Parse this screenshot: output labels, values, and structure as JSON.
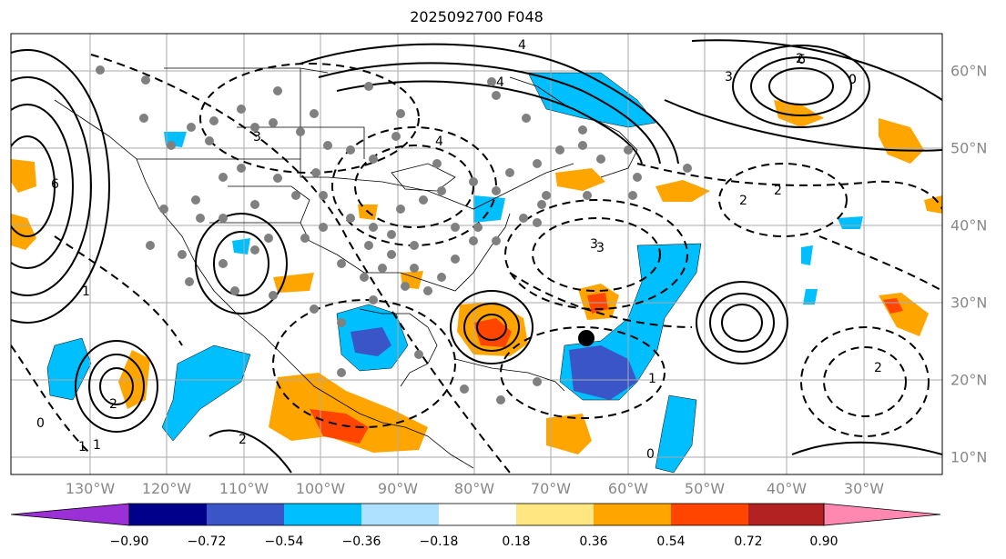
{
  "title": "2025092700 F048",
  "longitude_labels": [
    "130°W",
    "120°W",
    "110°W",
    "100°W",
    "90°W",
    "80°W",
    "70°W",
    "60°W",
    "50°W",
    "40°W",
    "30°W"
  ],
  "latitude_labels": [
    "60°N",
    "50°N",
    "40°N",
    "30°N",
    "20°N",
    "10°N"
  ],
  "colorbar": {
    "colors": [
      "#9b30d6",
      "#00008b",
      "#3a55c8",
      "#00bfff",
      "#aee0ff",
      "#ffffff",
      "#ffe680",
      "#ffa500",
      "#ff4500",
      "#b22222",
      "#ff88b0"
    ],
    "tick_labels": [
      "−0.90",
      "−0.72",
      "−0.54",
      "−0.36",
      "−0.18",
      "0.18",
      "0.36",
      "0.54",
      "0.72",
      "0.90"
    ]
  },
  "contour_labels": [
    "0",
    "1",
    "2",
    "3",
    "4",
    "5",
    "6",
    "0",
    "2",
    "3",
    "4",
    "6",
    "0",
    "1",
    "2",
    "3",
    "2",
    "1",
    "0",
    "2",
    "3",
    "4",
    "1",
    "2"
  ],
  "map_features": {
    "storm_center_marker": "black-dot",
    "station_markers": "gray-dots"
  }
}
